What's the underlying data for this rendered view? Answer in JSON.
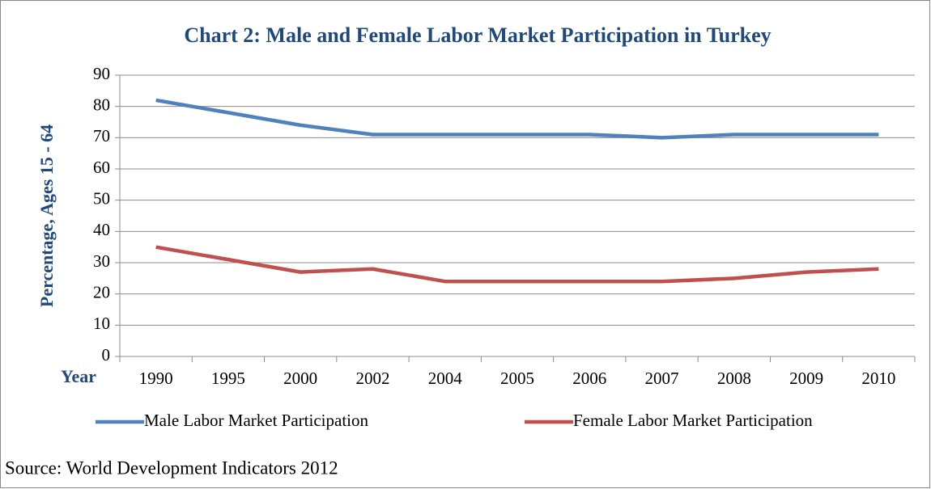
{
  "chart_data": {
    "type": "line",
    "title": "Chart 2: Male and Female Labor Market Participation in Turkey",
    "y_label": "Percentage, Ages 15 - 64",
    "x_label": "Year",
    "categories": [
      "1990",
      "1995",
      "2000",
      "2002",
      "2004",
      "2005",
      "2006",
      "2007",
      "2008",
      "2009",
      "2010"
    ],
    "series": [
      {
        "name": "Male Labor Market Participation",
        "color": "#4f81bd",
        "values": [
          82,
          78,
          74,
          71,
          71,
          71,
          71,
          70,
          71,
          71,
          71
        ]
      },
      {
        "name": "Female Labor Market Participation",
        "color": "#c0504d",
        "values": [
          35,
          31,
          27,
          28,
          24,
          24,
          24,
          24,
          25,
          27,
          28
        ]
      }
    ],
    "ylim": [
      0,
      90
    ],
    "yticks": [
      0,
      10,
      20,
      30,
      40,
      50,
      60,
      70,
      80,
      90
    ],
    "grid": true,
    "legend": "bottom",
    "source": "Source: World Development Indicators 2012"
  }
}
